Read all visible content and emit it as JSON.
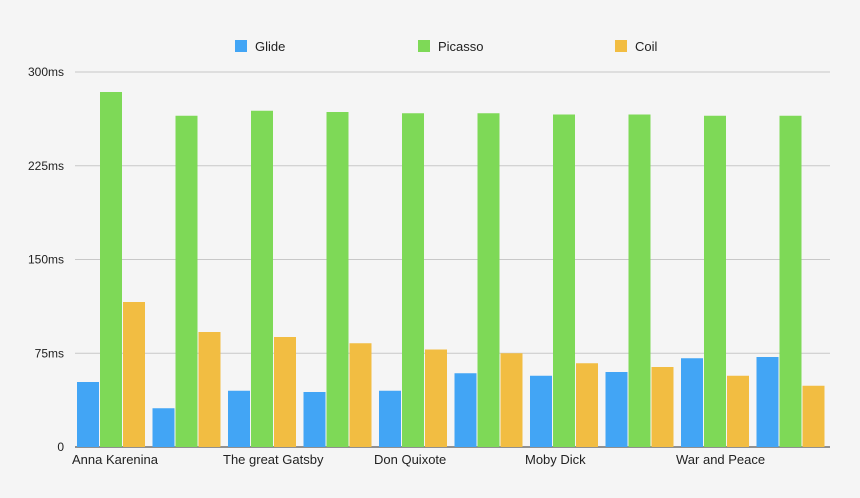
{
  "chart_data": {
    "type": "bar",
    "categories": [
      "Anna Karenina",
      "",
      "The great Gatsby",
      "",
      "Don Quixote",
      "",
      "Moby Dick",
      "",
      "War and Peace",
      ""
    ],
    "series": [
      {
        "name": "Glide",
        "color": "#42a5f5",
        "values": [
          52,
          31,
          45,
          44,
          45,
          59,
          57,
          60,
          71,
          72
        ]
      },
      {
        "name": "Picasso",
        "color": "#7ed957",
        "values": [
          284,
          265,
          269,
          268,
          267,
          267,
          266,
          266,
          265,
          265
        ]
      },
      {
        "name": "Coil",
        "color": "#f2bd42",
        "values": [
          116,
          92,
          88,
          83,
          78,
          75,
          67,
          64,
          57,
          49
        ]
      }
    ],
    "y_ticks": [
      "0",
      "75ms",
      "150ms",
      "225ms",
      "300ms"
    ],
    "ylim": [
      0,
      300
    ],
    "grid": true,
    "legend_position": "top-center"
  }
}
